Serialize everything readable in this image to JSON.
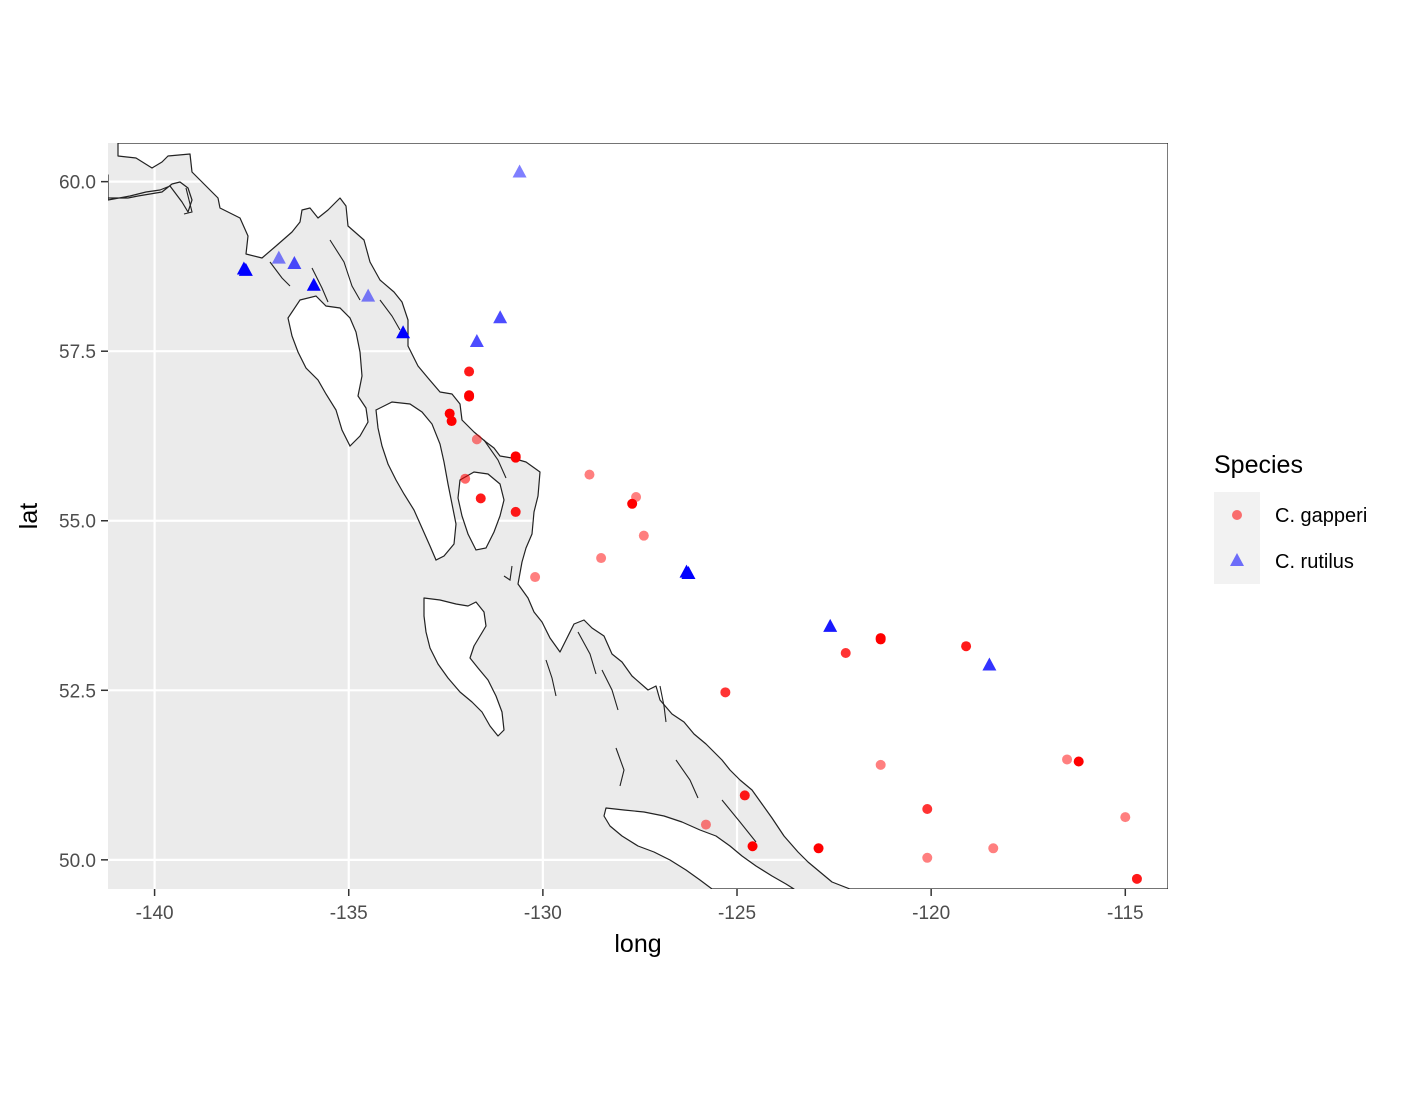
{
  "chart_data": {
    "type": "scatter",
    "xlabel": "long",
    "ylabel": "lat",
    "xlim": [
      -141.2,
      -113.9
    ],
    "ylim": [
      49.57,
      60.57
    ],
    "x_ticks": [
      -140,
      -135,
      -130,
      -125,
      -120,
      -115
    ],
    "x_tick_labels": [
      "-140",
      "-135",
      "-130",
      "-125",
      "-120",
      "-115"
    ],
    "y_ticks": [
      50.0,
      52.5,
      55.0,
      57.5,
      60.0
    ],
    "y_tick_labels": [
      "50.0",
      "52.5",
      "55.0",
      "57.5",
      "60.0"
    ],
    "grid": true,
    "legend": {
      "title": "Species",
      "position": "right"
    },
    "series": [
      {
        "name": "C. gapperi",
        "shape": "circle",
        "color": "#ff0000",
        "points": [
          [
            -131.9,
            57.2,
            0.9
          ],
          [
            -131.9,
            56.85,
            1.0
          ],
          [
            -131.9,
            56.83,
            1.0
          ],
          [
            -132.4,
            56.58,
            1.0
          ],
          [
            -132.35,
            56.47,
            1.0
          ],
          [
            -131.7,
            56.2,
            0.5
          ],
          [
            -130.7,
            55.95,
            1.0
          ],
          [
            -130.7,
            55.93,
            1.0
          ],
          [
            -132.0,
            55.62,
            0.6
          ],
          [
            -131.6,
            55.33,
            0.9
          ],
          [
            -130.7,
            55.13,
            0.9
          ],
          [
            -128.8,
            55.68,
            0.5
          ],
          [
            -127.7,
            55.25,
            1.0
          ],
          [
            -127.6,
            55.35,
            0.5
          ],
          [
            -127.4,
            54.78,
            0.5
          ],
          [
            -128.5,
            54.45,
            0.5
          ],
          [
            -130.2,
            54.17,
            0.5
          ],
          [
            -125.3,
            52.47,
            0.8
          ],
          [
            -122.2,
            53.05,
            0.8
          ],
          [
            -121.3,
            53.27,
            1.0
          ],
          [
            -121.3,
            53.25,
            1.0
          ],
          [
            -119.1,
            53.15,
            0.9
          ],
          [
            -121.3,
            51.4,
            0.5
          ],
          [
            -116.5,
            51.48,
            0.5
          ],
          [
            -116.2,
            51.45,
            1.0
          ],
          [
            -115.0,
            50.63,
            0.5
          ],
          [
            -120.1,
            50.75,
            0.8
          ],
          [
            -124.8,
            50.95,
            0.9
          ],
          [
            -125.8,
            50.52,
            0.5
          ],
          [
            -124.6,
            50.2,
            1.0
          ],
          [
            -122.9,
            50.17,
            1.0
          ],
          [
            -120.1,
            50.03,
            0.5
          ],
          [
            -118.4,
            50.17,
            0.5
          ],
          [
            -114.7,
            49.72,
            0.9
          ]
        ]
      },
      {
        "name": "C. rutilus",
        "shape": "triangle",
        "color": "#0000ff",
        "points": [
          [
            -130.6,
            60.15,
            0.5
          ],
          [
            -137.7,
            58.72,
            1.0
          ],
          [
            -137.65,
            58.7,
            1.0
          ],
          [
            -136.8,
            58.88,
            0.5
          ],
          [
            -136.4,
            58.8,
            0.7
          ],
          [
            -135.9,
            58.48,
            1.0
          ],
          [
            -134.5,
            58.32,
            0.5
          ],
          [
            -133.6,
            57.78,
            1.0
          ],
          [
            -131.1,
            58.0,
            0.7
          ],
          [
            -131.7,
            57.65,
            0.7
          ],
          [
            -126.3,
            54.25,
            1.0
          ],
          [
            -126.25,
            54.23,
            1.0
          ],
          [
            -122.6,
            53.45,
            0.9
          ],
          [
            -118.5,
            52.88,
            0.8
          ]
        ]
      }
    ]
  }
}
